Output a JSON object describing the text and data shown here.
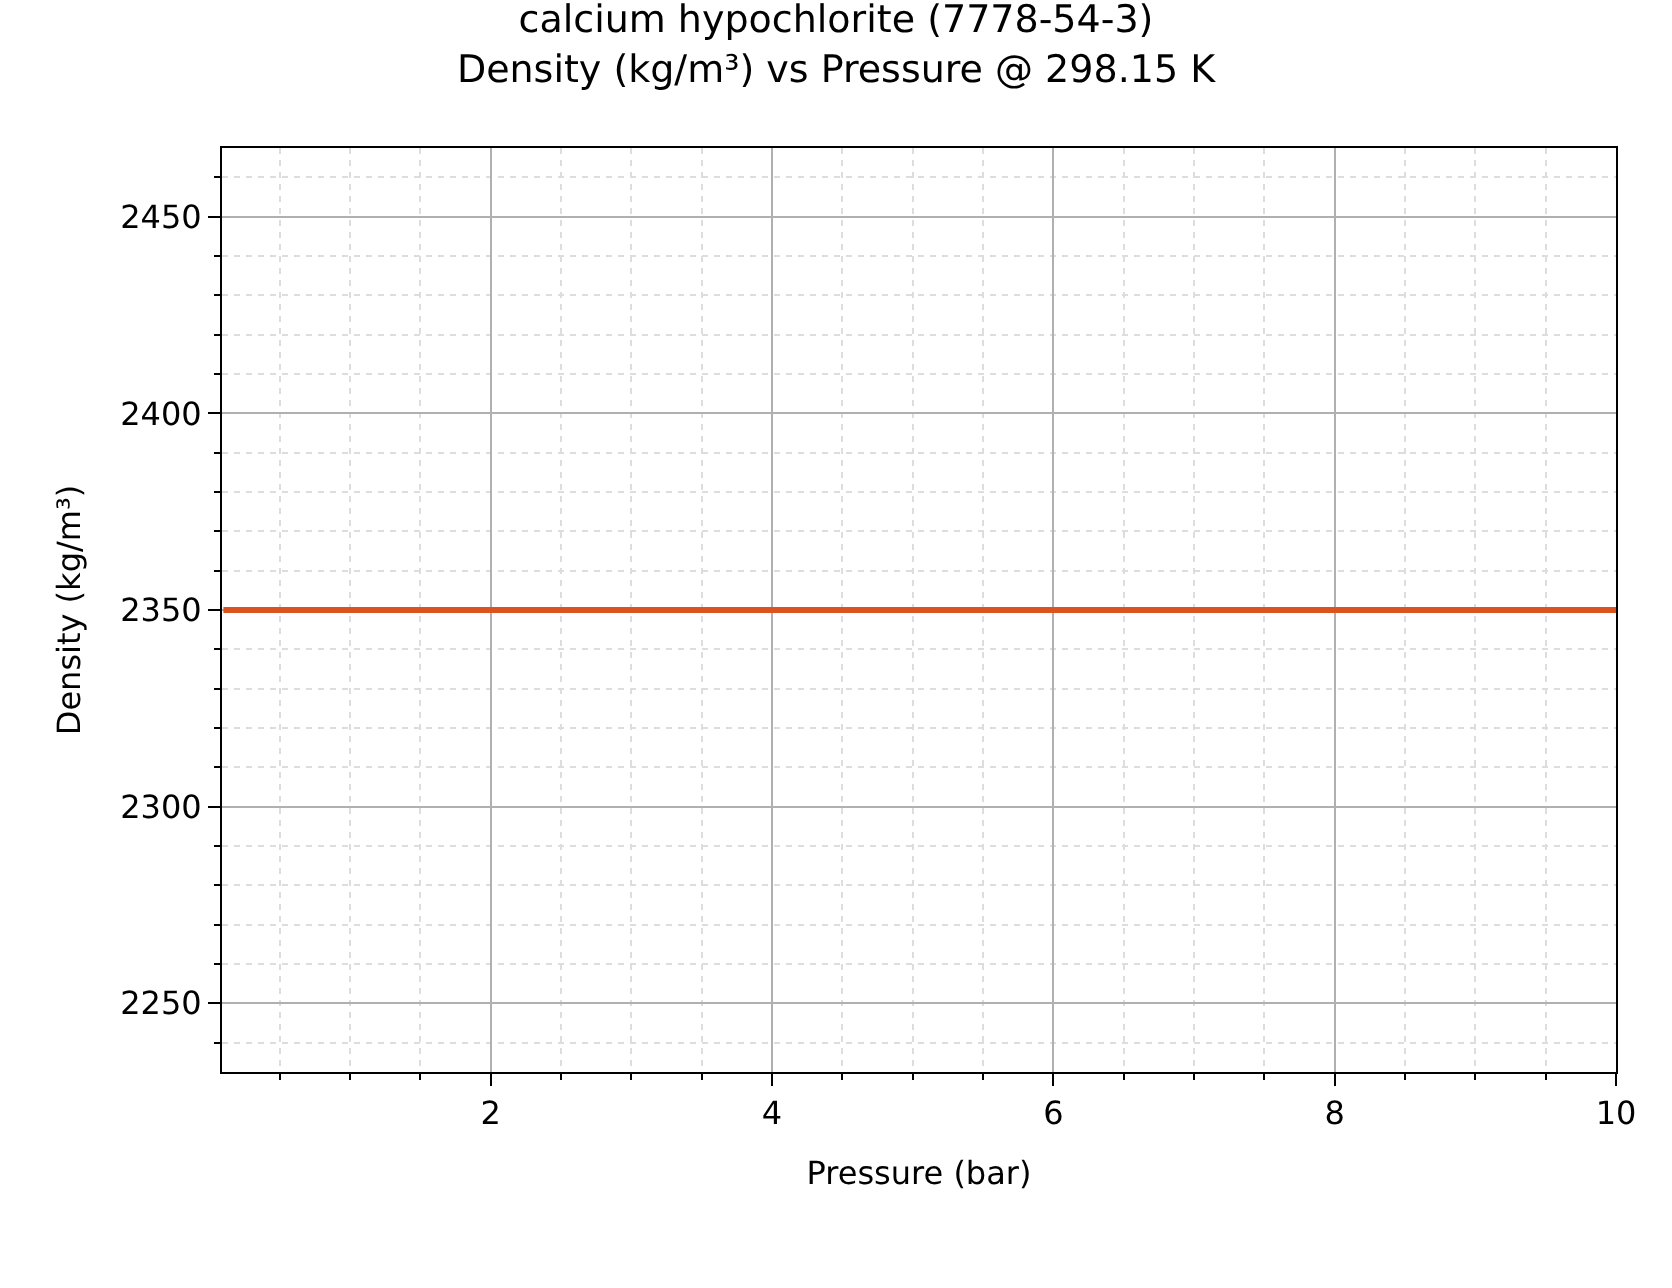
{
  "chart_data": {
    "type": "line",
    "title": "calcium hypochlorite (7778-54-3)",
    "subtitle": "Density (kg/m³) vs Pressure @ 298.15 K",
    "xlabel": "Pressure (bar)",
    "ylabel": "Density (kg/m³)",
    "x": [
      0.1,
      10
    ],
    "series": [
      {
        "color": "#d9541e",
        "values": [
          2350,
          2350
        ]
      }
    ],
    "xlim": [
      0.09,
      10
    ],
    "ylim": [
      2232.5,
      2467.5
    ],
    "xticks": [
      {
        "value": 0.5,
        "label": null
      },
      {
        "value": 1,
        "label": null
      },
      {
        "value": 1.5,
        "label": null
      },
      2,
      {
        "value": 2.5,
        "label": null
      },
      {
        "value": 3,
        "label": null
      },
      {
        "value": 3.5,
        "label": null
      },
      4,
      {
        "value": 4.5,
        "label": null
      },
      {
        "value": 5,
        "label": null
      },
      {
        "value": 5.5,
        "label": null
      },
      6,
      {
        "value": 6.5,
        "label": null
      },
      {
        "value": 7,
        "label": null
      },
      {
        "value": 7.5,
        "label": null
      },
      8,
      {
        "value": 8.5,
        "label": null
      },
      {
        "value": 9,
        "label": null
      },
      {
        "value": 9.5,
        "label": null
      },
      10
    ],
    "yticks": [
      {
        "value": 2240,
        "label": null
      },
      2250,
      {
        "value": 2260,
        "label": null
      },
      {
        "value": 2270,
        "label": null
      },
      {
        "value": 2280,
        "label": null
      },
      {
        "value": 2290,
        "label": null
      },
      2300,
      {
        "value": 2310,
        "label": null
      },
      {
        "value": 2320,
        "label": null
      },
      {
        "value": 2330,
        "label": null
      },
      {
        "value": 2340,
        "label": null
      },
      2350,
      {
        "value": 2360,
        "label": null
      },
      {
        "value": 2370,
        "label": null
      },
      {
        "value": 2380,
        "label": null
      },
      {
        "value": 2390,
        "label": null
      },
      2400,
      {
        "value": 2410,
        "label": null
      },
      {
        "value": 2420,
        "label": null
      },
      {
        "value": 2430,
        "label": null
      },
      {
        "value": 2440,
        "label": null
      },
      2450,
      {
        "value": 2460,
        "label": null
      }
    ],
    "grid": true,
    "marker": "none",
    "line_style": "solid"
  }
}
